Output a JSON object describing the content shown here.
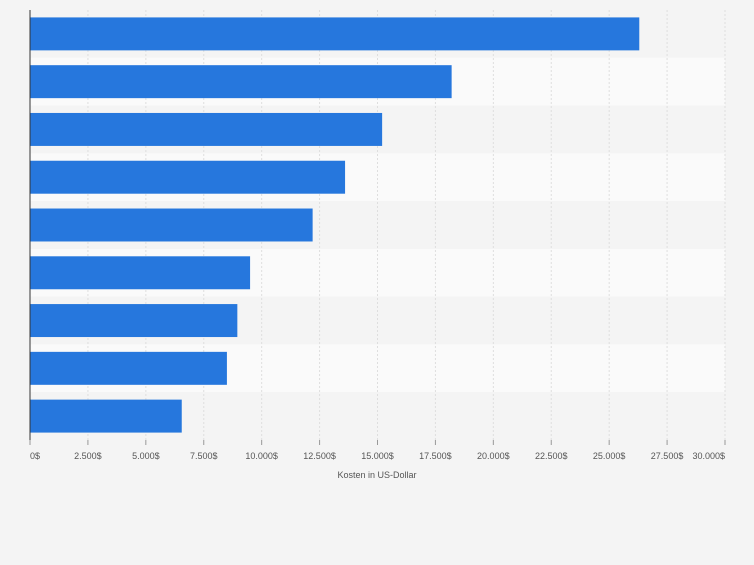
{
  "chart_data": {
    "type": "bar",
    "orientation": "horizontal",
    "categories": [
      "",
      "",
      "",
      "",
      "",
      "",
      "",
      "",
      ""
    ],
    "values": [
      26300,
      18200,
      15200,
      13600,
      12200,
      9500,
      8950,
      8500,
      6550
    ],
    "x_ticks": [
      0,
      2500,
      5000,
      7500,
      10000,
      12500,
      15000,
      17500,
      20000,
      22500,
      25000,
      27500,
      30000
    ],
    "x_tick_labels": [
      "0$",
      "2.500$",
      "5.000$",
      "7.500$",
      "10.000$",
      "12.500$",
      "15.000$",
      "17.500$",
      "20.000$",
      "22.500$",
      "25.000$",
      "27.500$",
      "30.000$"
    ],
    "xlim": [
      0,
      30000
    ],
    "xlabel": "Kosten in US-Dollar",
    "ylabel": "",
    "title": "",
    "grid": true,
    "legend": "none",
    "bar_color": "#2677dd",
    "band_colors": [
      "#f4f4f4",
      "#fafafa"
    ]
  }
}
